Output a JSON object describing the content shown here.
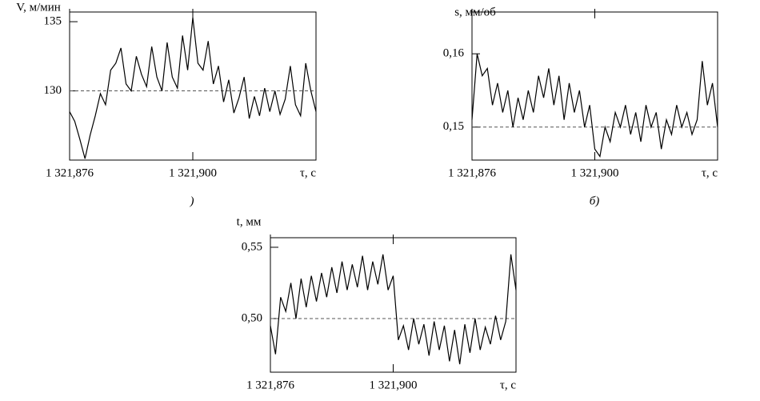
{
  "chart_data": [
    {
      "type": "line",
      "y_label": "V, м/мин",
      "x_label": "τ, с",
      "caption": ")",
      "x": [
        1321.876,
        1321.877,
        1321.878,
        1321.879,
        1321.88,
        1321.881,
        1321.882,
        1321.883,
        1321.884,
        1321.885,
        1321.886,
        1321.887,
        1321.888,
        1321.889,
        1321.89,
        1321.891,
        1321.892,
        1321.893,
        1321.894,
        1321.895,
        1321.896,
        1321.897,
        1321.898,
        1321.899,
        1321.9,
        1321.901,
        1321.902,
        1321.903,
        1321.904,
        1321.905,
        1321.906,
        1321.907,
        1321.908,
        1321.909,
        1321.91,
        1321.911,
        1321.912,
        1321.913,
        1321.914,
        1321.915,
        1321.916,
        1321.917,
        1321.918,
        1321.919,
        1321.92,
        1321.921,
        1321.922,
        1321.923,
        1321.924
      ],
      "series": [
        {
          "color": "#000000",
          "values": [
            128.5,
            127.8,
            126.5,
            125.1,
            126.8,
            128.2,
            129.8,
            129.0,
            131.5,
            132.0,
            133.1,
            130.5,
            130.0,
            132.5,
            131.2,
            130.3,
            133.2,
            131.0,
            130.0,
            133.5,
            131.0,
            130.2,
            134.0,
            131.5,
            135.3,
            132.0,
            131.5,
            133.6,
            130.5,
            131.8,
            129.2,
            130.8,
            128.4,
            129.5,
            131.0,
            128.0,
            129.6,
            128.2,
            130.2,
            128.5,
            130.0,
            128.3,
            129.4,
            131.8,
            129.0,
            128.2,
            132.0,
            130.0,
            128.5
          ]
        }
      ],
      "xlim": [
        1321.876,
        1321.924
      ],
      "ylim": [
        125,
        135.7
      ],
      "xticks": [
        {
          "value": 1321.876,
          "label": "1 321,876"
        },
        {
          "value": 1321.9,
          "label": "1 321,900"
        }
      ],
      "yticks": [
        130,
        135
      ],
      "reference_line": 130
    },
    {
      "type": "line",
      "y_label": "s, мм/об",
      "x_label": "τ, с",
      "caption": "б)",
      "x": [
        1321.876,
        1321.877,
        1321.878,
        1321.879,
        1321.88,
        1321.881,
        1321.882,
        1321.883,
        1321.884,
        1321.885,
        1321.886,
        1321.887,
        1321.888,
        1321.889,
        1321.89,
        1321.891,
        1321.892,
        1321.893,
        1321.894,
        1321.895,
        1321.896,
        1321.897,
        1321.898,
        1321.899,
        1321.9,
        1321.901,
        1321.902,
        1321.903,
        1321.904,
        1321.905,
        1321.906,
        1321.907,
        1321.908,
        1321.909,
        1321.91,
        1321.911,
        1321.912,
        1321.913,
        1321.914,
        1321.915,
        1321.916,
        1321.917,
        1321.918,
        1321.919,
        1321.92,
        1321.921,
        1321.922,
        1321.923,
        1321.924
      ],
      "series": [
        {
          "color": "#000000",
          "values": [
            0.151,
            0.16,
            0.157,
            0.158,
            0.153,
            0.156,
            0.152,
            0.155,
            0.15,
            0.154,
            0.151,
            0.155,
            0.152,
            0.157,
            0.154,
            0.158,
            0.153,
            0.157,
            0.151,
            0.156,
            0.152,
            0.155,
            0.15,
            0.153,
            0.147,
            0.146,
            0.15,
            0.148,
            0.152,
            0.15,
            0.153,
            0.149,
            0.152,
            0.148,
            0.153,
            0.15,
            0.152,
            0.147,
            0.151,
            0.149,
            0.153,
            0.15,
            0.152,
            0.149,
            0.151,
            0.159,
            0.153,
            0.156,
            0.15
          ]
        }
      ],
      "xlim": [
        1321.876,
        1321.924
      ],
      "ylim": [
        0.1455,
        0.1657
      ],
      "xticks": [
        {
          "value": 1321.876,
          "label": "1 321,876"
        },
        {
          "value": 1321.9,
          "label": "1 321,900"
        }
      ],
      "yticks": [
        {
          "value": 0.15,
          "label": "0,15"
        },
        {
          "value": 0.16,
          "label": "0,16"
        }
      ],
      "reference_line": 0.15
    },
    {
      "type": "line",
      "y_label": "t, мм",
      "x_label": "τ, с",
      "x": [
        1321.876,
        1321.877,
        1321.878,
        1321.879,
        1321.88,
        1321.881,
        1321.882,
        1321.883,
        1321.884,
        1321.885,
        1321.886,
        1321.887,
        1321.888,
        1321.889,
        1321.89,
        1321.891,
        1321.892,
        1321.893,
        1321.894,
        1321.895,
        1321.896,
        1321.897,
        1321.898,
        1321.899,
        1321.9,
        1321.901,
        1321.902,
        1321.903,
        1321.904,
        1321.905,
        1321.906,
        1321.907,
        1321.908,
        1321.909,
        1321.91,
        1321.911,
        1321.912,
        1321.913,
        1321.914,
        1321.915,
        1321.916,
        1321.917,
        1321.918,
        1321.919,
        1321.92,
        1321.921,
        1321.922,
        1321.923,
        1321.924
      ],
      "series": [
        {
          "color": "#000000",
          "values": [
            0.495,
            0.475,
            0.515,
            0.505,
            0.525,
            0.5,
            0.528,
            0.508,
            0.53,
            0.512,
            0.532,
            0.515,
            0.536,
            0.518,
            0.54,
            0.52,
            0.538,
            0.522,
            0.544,
            0.52,
            0.54,
            0.524,
            0.545,
            0.52,
            0.53,
            0.485,
            0.495,
            0.478,
            0.5,
            0.482,
            0.496,
            0.474,
            0.498,
            0.478,
            0.495,
            0.47,
            0.492,
            0.468,
            0.496,
            0.476,
            0.5,
            0.478,
            0.494,
            0.482,
            0.502,
            0.485,
            0.498,
            0.545,
            0.52
          ]
        }
      ],
      "xlim": [
        1321.876,
        1321.924
      ],
      "ylim": [
        0.4624,
        0.5567
      ],
      "xticks": [
        {
          "value": 1321.876,
          "label": "1 321,876"
        },
        {
          "value": 1321.9,
          "label": "1 321,900"
        }
      ],
      "yticks": [
        {
          "value": 0.5,
          "label": "0,50"
        },
        {
          "value": 0.55,
          "label": "0,55"
        }
      ],
      "reference_line": 0.5
    }
  ]
}
